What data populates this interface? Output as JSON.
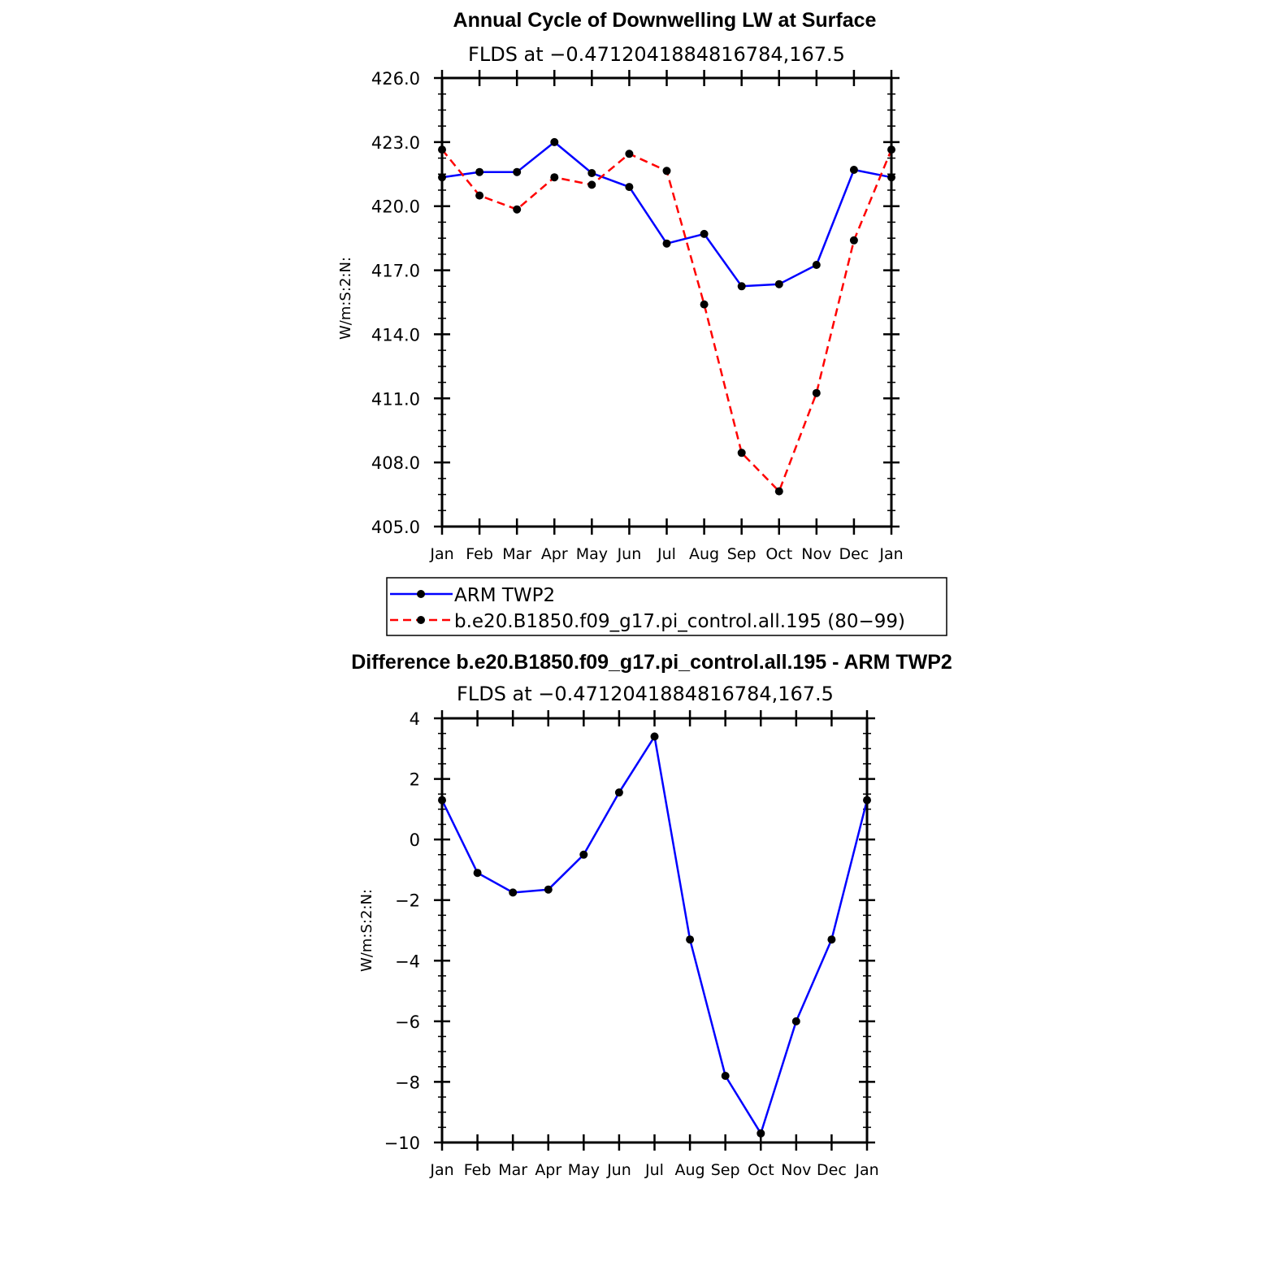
{
  "chart_data": [
    {
      "type": "line",
      "title": "Annual Cycle of Downwelling LW at Surface",
      "subtitle": "FLDS at −0.4712041884816784,167.5",
      "ylabel": "W/m:S:2:N:",
      "xlabel": "",
      "categories": [
        "Jan",
        "Feb",
        "Mar",
        "Apr",
        "May",
        "Jun",
        "Jul",
        "Aug",
        "Sep",
        "Oct",
        "Nov",
        "Dec",
        "Jan"
      ],
      "ylim": [
        405.0,
        426.0
      ],
      "yticks": [
        "405.0",
        "408.0",
        "411.0",
        "414.0",
        "417.0",
        "420.0",
        "423.0",
        "426.0"
      ],
      "series": [
        {
          "name": "ARM TWP2",
          "color": "#0000ff",
          "dash": "solid",
          "values": [
            421.35,
            421.6,
            421.6,
            423.0,
            421.55,
            420.9,
            418.25,
            418.7,
            416.25,
            416.35,
            417.25,
            421.7,
            421.35
          ]
        },
        {
          "name": "b.e20.B1850.f09_g17.pi_control.all.195 (80−99)",
          "color": "#ff0000",
          "dash": "dashed",
          "values": [
            422.65,
            420.5,
            419.85,
            421.35,
            421.0,
            422.45,
            421.65,
            415.4,
            408.45,
            406.65,
            411.25,
            418.4,
            422.65
          ]
        }
      ],
      "legend": "below"
    },
    {
      "type": "line",
      "title": "Difference b.e20.B1850.f09_g17.pi_control.all.195 - ARM TWP2",
      "subtitle": "FLDS at −0.4712041884816784,167.5",
      "ylabel": "W/m:S:2:N:",
      "xlabel": "",
      "categories": [
        "Jan",
        "Feb",
        "Mar",
        "Apr",
        "May",
        "Jun",
        "Jul",
        "Aug",
        "Sep",
        "Oct",
        "Nov",
        "Dec",
        "Jan"
      ],
      "ylim": [
        -10,
        4
      ],
      "yticks": [
        "−10",
        "−8",
        "−6",
        "−4",
        "−2",
        "0",
        "2",
        "4"
      ],
      "series": [
        {
          "name": "Difference",
          "color": "#0000ff",
          "dash": "solid",
          "values": [
            1.3,
            -1.1,
            -1.75,
            -1.65,
            -0.5,
            1.55,
            3.4,
            -3.3,
            -7.8,
            -9.7,
            -6.0,
            -3.3,
            1.3
          ]
        }
      ]
    }
  ]
}
